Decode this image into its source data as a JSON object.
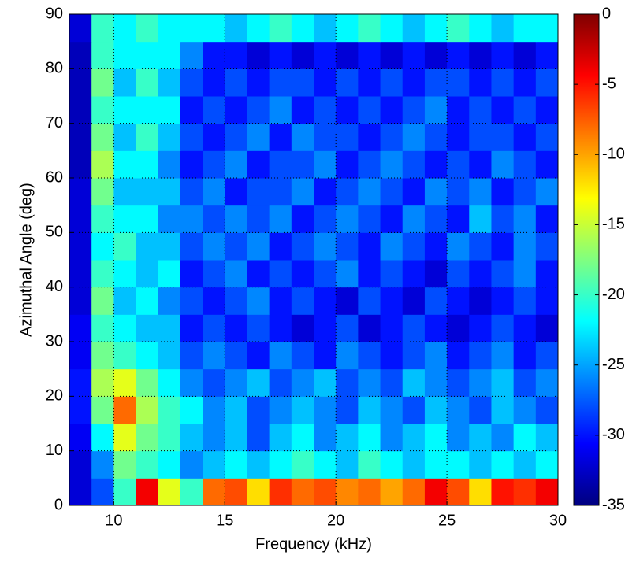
{
  "chart_data": {
    "type": "heatmap",
    "xlabel": "Frequency (kHz)",
    "ylabel": "Azimuthal Angle (deg)",
    "x": [
      8.5,
      9.5,
      10.5,
      11.5,
      12.5,
      13.5,
      14.5,
      15.5,
      16.5,
      17.5,
      18.5,
      19.5,
      20.5,
      21.5,
      22.5,
      23.5,
      24.5,
      25.5,
      26.5,
      27.5,
      28.5,
      29.5
    ],
    "y": [
      2.5,
      7.5,
      12.5,
      17.5,
      22.5,
      27.5,
      32.5,
      37.5,
      42.5,
      47.5,
      52.5,
      57.5,
      62.5,
      67.5,
      72.5,
      77.5,
      82.5,
      87.5
    ],
    "z": [
      [
        -32,
        -28,
        -20,
        -4,
        -14,
        -20,
        -8,
        -7,
        -12,
        -6,
        -8,
        -7,
        -9,
        -8,
        -10,
        -8,
        -4,
        -7,
        -12,
        -5,
        -6,
        -4
      ],
      [
        -32,
        -26,
        -18,
        -20,
        -22,
        -26,
        -24,
        -22,
        -24,
        -22,
        -20,
        -22,
        -24,
        -20,
        -22,
        -24,
        -22,
        -22,
        -24,
        -22,
        -24,
        -22
      ],
      [
        -31,
        -22,
        -14,
        -18,
        -20,
        -24,
        -26,
        -24,
        -28,
        -24,
        -22,
        -26,
        -24,
        -22,
        -26,
        -24,
        -22,
        -26,
        -24,
        -26,
        -22,
        -24
      ],
      [
        -30,
        -18,
        -8,
        -16,
        -20,
        -22,
        -26,
        -24,
        -28,
        -26,
        -24,
        -26,
        -28,
        -24,
        -26,
        -28,
        -24,
        -26,
        -28,
        -24,
        -26,
        -28
      ],
      [
        -30,
        -16,
        -14,
        -18,
        -22,
        -26,
        -28,
        -26,
        -24,
        -28,
        -26,
        -24,
        -28,
        -26,
        -28,
        -24,
        -26,
        -28,
        -26,
        -24,
        -28,
        -26
      ],
      [
        -31,
        -18,
        -20,
        -22,
        -24,
        -28,
        -26,
        -28,
        -30,
        -26,
        -28,
        -30,
        -26,
        -28,
        -30,
        -28,
        -26,
        -30,
        -28,
        -26,
        -30,
        -28
      ],
      [
        -31,
        -20,
        -22,
        -24,
        -24,
        -30,
        -28,
        -30,
        -28,
        -30,
        -32,
        -30,
        -28,
        -32,
        -30,
        -28,
        -30,
        -32,
        -30,
        -28,
        -30,
        -32
      ],
      [
        -32,
        -18,
        -24,
        -22,
        -26,
        -28,
        -30,
        -28,
        -26,
        -30,
        -28,
        -30,
        -32,
        -28,
        -30,
        -32,
        -28,
        -30,
        -32,
        -30,
        -28,
        -30
      ],
      [
        -32,
        -20,
        -22,
        -24,
        -22,
        -30,
        -28,
        -26,
        -30,
        -28,
        -30,
        -28,
        -26,
        -30,
        -28,
        -30,
        -32,
        -28,
        -30,
        -28,
        -26,
        -30
      ],
      [
        -32,
        -22,
        -20,
        -24,
        -24,
        -28,
        -26,
        -28,
        -26,
        -30,
        -28,
        -26,
        -28,
        -30,
        -26,
        -28,
        -30,
        -26,
        -28,
        -30,
        -26,
        -28
      ],
      [
        -32,
        -20,
        -22,
        -22,
        -26,
        -26,
        -28,
        -26,
        -28,
        -26,
        -30,
        -28,
        -26,
        -28,
        -30,
        -26,
        -28,
        -30,
        -24,
        -28,
        -26,
        -30
      ],
      [
        -32,
        -18,
        -24,
        -24,
        -24,
        -28,
        -26,
        -30,
        -28,
        -28,
        -26,
        -30,
        -28,
        -26,
        -28,
        -30,
        -26,
        -28,
        -26,
        -30,
        -28,
        -26
      ],
      [
        -33,
        -16,
        -22,
        -22,
        -26,
        -30,
        -28,
        -26,
        -30,
        -28,
        -28,
        -26,
        -30,
        -28,
        -26,
        -28,
        -30,
        -28,
        -30,
        -26,
        -28,
        -30
      ],
      [
        -33,
        -18,
        -24,
        -20,
        -24,
        -28,
        -30,
        -28,
        -26,
        -30,
        -26,
        -28,
        -28,
        -30,
        -28,
        -26,
        -28,
        -30,
        -28,
        -28,
        -30,
        -28
      ],
      [
        -33,
        -20,
        -22,
        -22,
        -22,
        -30,
        -28,
        -30,
        -28,
        -26,
        -30,
        -28,
        -30,
        -28,
        -30,
        -28,
        -26,
        -30,
        -28,
        -30,
        -28,
        -30
      ],
      [
        -33,
        -18,
        -24,
        -20,
        -24,
        -28,
        -30,
        -28,
        -30,
        -28,
        -28,
        -30,
        -28,
        -30,
        -28,
        -30,
        -28,
        -28,
        -30,
        -28,
        -30,
        -28
      ],
      [
        -33,
        -20,
        -22,
        -22,
        -22,
        -26,
        -30,
        -30,
        -32,
        -30,
        -32,
        -30,
        -32,
        -30,
        -32,
        -30,
        -32,
        -30,
        -32,
        -30,
        -32,
        -30
      ],
      [
        -32,
        -20,
        -22,
        -20,
        -22,
        -22,
        -22,
        -24,
        -22,
        -20,
        -22,
        -24,
        -22,
        -20,
        -22,
        -24,
        -22,
        -20,
        -22,
        -24,
        -22,
        -22
      ]
    ],
    "xlim": [
      8,
      30
    ],
    "xticks": [
      10,
      15,
      20,
      25,
      30
    ],
    "ylim": [
      0,
      90
    ],
    "yticks": [
      0,
      10,
      20,
      30,
      40,
      50,
      60,
      70,
      80,
      90
    ],
    "zlim": [
      -35,
      0
    ],
    "zticks": [
      0,
      -5,
      -10,
      -15,
      -20,
      -25,
      -30,
      -35
    ],
    "colormap": "jet",
    "grid": true
  }
}
